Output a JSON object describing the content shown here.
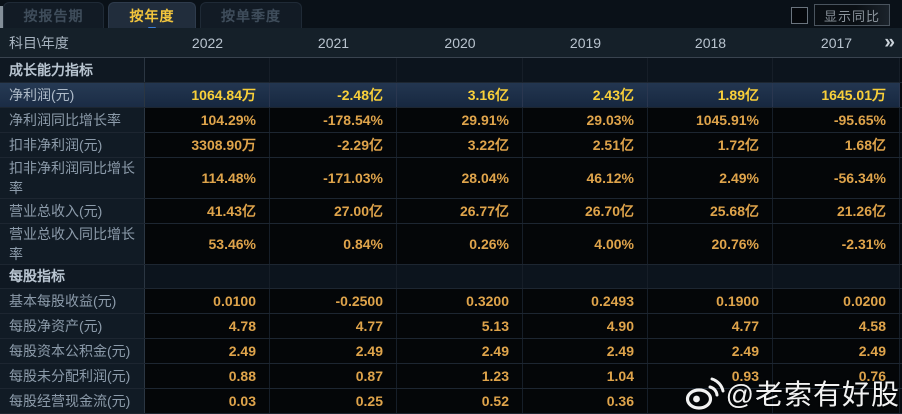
{
  "tabs": [
    {
      "label": "按报告期",
      "active": false
    },
    {
      "label": "按年度",
      "active": true
    },
    {
      "label": "按单季度",
      "active": false
    }
  ],
  "controls": {
    "show_yoy_label": "显示同比",
    "checkbox_checked": false
  },
  "table": {
    "corner_label": "科目\\年度",
    "years": [
      "2022",
      "2021",
      "2020",
      "2019",
      "2018",
      "2017"
    ],
    "more_years_icon": "»",
    "rows": [
      {
        "type": "section",
        "label": "成长能力指标",
        "values": [
          "",
          "",
          "",
          "",
          "",
          ""
        ]
      },
      {
        "type": "data",
        "highlighted": true,
        "label": "净利润(元)",
        "values": [
          "1064.84万",
          "-2.48亿",
          "3.16亿",
          "2.43亿",
          "1.89亿",
          "1645.01万"
        ]
      },
      {
        "type": "data",
        "label": "净利润同比增长率",
        "values": [
          "104.29%",
          "-178.54%",
          "29.91%",
          "29.03%",
          "1045.91%",
          "-95.65%"
        ]
      },
      {
        "type": "data",
        "label": "扣非净利润(元)",
        "values": [
          "3308.90万",
          "-2.29亿",
          "3.22亿",
          "2.51亿",
          "1.72亿",
          "1.68亿"
        ]
      },
      {
        "type": "data",
        "label": "扣非净利润同比增长率",
        "values": [
          "114.48%",
          "-171.03%",
          "28.04%",
          "46.12%",
          "2.49%",
          "-56.34%"
        ]
      },
      {
        "type": "data",
        "label": "营业总收入(元)",
        "values": [
          "41.43亿",
          "27.00亿",
          "26.77亿",
          "26.70亿",
          "25.68亿",
          "21.26亿"
        ]
      },
      {
        "type": "data",
        "label": "营业总收入同比增长率",
        "values": [
          "53.46%",
          "0.84%",
          "0.26%",
          "4.00%",
          "20.76%",
          "-2.31%"
        ]
      },
      {
        "type": "section",
        "label": "每股指标",
        "values": [
          "",
          "",
          "",
          "",
          "",
          ""
        ]
      },
      {
        "type": "data",
        "label": "基本每股收益(元)",
        "values": [
          "0.0100",
          "-0.2500",
          "0.3200",
          "0.2493",
          "0.1900",
          "0.0200"
        ]
      },
      {
        "type": "data",
        "label": "每股净资产(元)",
        "values": [
          "4.78",
          "4.77",
          "5.13",
          "4.90",
          "4.77",
          "4.58"
        ]
      },
      {
        "type": "data",
        "label": "每股资本公积金(元)",
        "values": [
          "2.49",
          "2.49",
          "2.49",
          "2.49",
          "2.49",
          "2.49"
        ]
      },
      {
        "type": "data",
        "label": "每股未分配利润(元)",
        "values": [
          "0.88",
          "0.87",
          "1.23",
          "1.04",
          "0.93",
          "0.76"
        ]
      },
      {
        "type": "data",
        "label": "每股经营现金流(元)",
        "values": [
          "0.03",
          "0.25",
          "0.52",
          "0.36",
          "",
          ""
        ]
      }
    ]
  },
  "watermark": {
    "icon": "weibo-icon",
    "text": "@老索有好股"
  },
  "colors": {
    "accent_yellow": "#f2c53d",
    "value_orange": "#dfa44b",
    "highlight_value": "#f9d03a",
    "row_highlight_bg": "#1d2c45",
    "header_bg": "#152029",
    "label_col_bg": "#111b25",
    "page_bg": "#070b10"
  }
}
